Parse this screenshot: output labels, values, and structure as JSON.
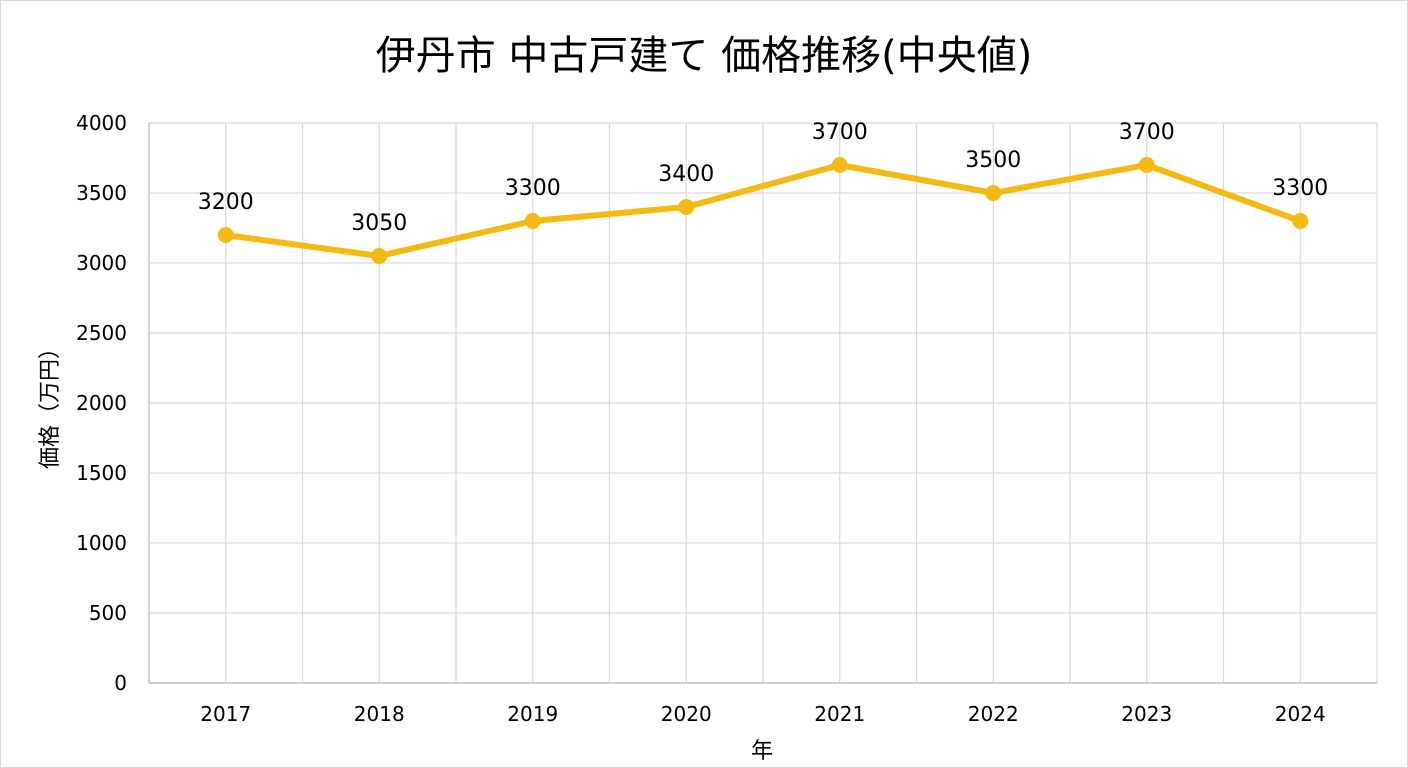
{
  "chart_data": {
    "type": "line",
    "title": "伊丹市 中古戸建て 価格推移(中央値)",
    "xlabel": "年",
    "ylabel": "価格（万円）",
    "categories": [
      "2017",
      "2018",
      "2019",
      "2020",
      "2021",
      "2022",
      "2023",
      "2024"
    ],
    "series": [
      {
        "values": [
          3200,
          3050,
          3300,
          3400,
          3700,
          3500,
          3700,
          3300
        ],
        "color": "#f5b914"
      }
    ],
    "data_labels": [
      "3200",
      "3050",
      "3300",
      "3400",
      "3700",
      "3500",
      "3700",
      "3300"
    ],
    "ylim": [
      0,
      4000
    ],
    "yticks": [
      0,
      500,
      1000,
      1500,
      2000,
      2500,
      3000,
      3500,
      4000
    ],
    "ytick_labels": [
      "0",
      "500",
      "1000",
      "1500",
      "2000",
      "2500",
      "3000",
      "3500",
      "4000"
    ],
    "grid": true,
    "legend": "none"
  }
}
